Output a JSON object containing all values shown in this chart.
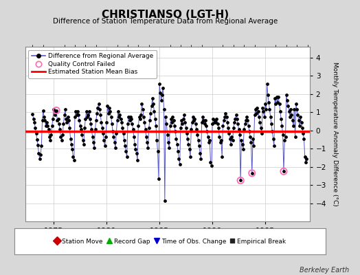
{
  "title": "CHRISTIANSO (LGT-H)",
  "subtitle": "Difference of Station Temperature Data from Regional Average",
  "ylabel": "Monthly Temperature Anomaly Difference (°C)",
  "xlim": [
    1972.3,
    1999.2
  ],
  "ylim": [
    -5.0,
    4.6
  ],
  "yticks": [
    -4,
    -3,
    -2,
    -1,
    0,
    1,
    2,
    3,
    4
  ],
  "xticks": [
    1975,
    1980,
    1985,
    1990,
    1995
  ],
  "bias_value": -0.05,
  "background_color": "#d8d8d8",
  "plot_bg_color": "#ffffff",
  "line_color": "#5555cc",
  "marker_color": "#000000",
  "bias_color": "#ff0000",
  "qc_color": "#ff69b4",
  "berkeley_earth_text": "Berkeley Earth",
  "time_series": [
    [
      1973.0,
      0.9
    ],
    [
      1973.083,
      0.65
    ],
    [
      1973.167,
      0.45
    ],
    [
      1973.25,
      0.15
    ],
    [
      1973.333,
      -0.15
    ],
    [
      1973.417,
      -0.5
    ],
    [
      1973.5,
      -0.8
    ],
    [
      1973.583,
      -1.25
    ],
    [
      1973.667,
      -1.55
    ],
    [
      1973.75,
      -1.35
    ],
    [
      1973.833,
      -0.85
    ],
    [
      1973.917,
      0.55
    ],
    [
      1974.0,
      1.1
    ],
    [
      1974.083,
      0.75
    ],
    [
      1974.167,
      0.55
    ],
    [
      1974.25,
      0.25
    ],
    [
      1974.333,
      0.45
    ],
    [
      1974.417,
      0.25
    ],
    [
      1974.5,
      0.05
    ],
    [
      1974.583,
      -0.35
    ],
    [
      1974.667,
      -0.55
    ],
    [
      1974.75,
      -0.25
    ],
    [
      1974.833,
      0.25
    ],
    [
      1974.917,
      0.65
    ],
    [
      1975.0,
      1.15
    ],
    [
      1975.083,
      0.85
    ],
    [
      1975.167,
      1.05
    ],
    [
      1975.25,
      1.1
    ],
    [
      1975.333,
      0.55
    ],
    [
      1975.417,
      0.65
    ],
    [
      1975.5,
      0.35
    ],
    [
      1975.583,
      0.05
    ],
    [
      1975.667,
      -0.35
    ],
    [
      1975.75,
      -0.55
    ],
    [
      1975.833,
      -0.25
    ],
    [
      1975.917,
      0.35
    ],
    [
      1976.0,
      0.85
    ],
    [
      1976.083,
      1.15
    ],
    [
      1976.167,
      0.65
    ],
    [
      1976.25,
      0.45
    ],
    [
      1976.333,
      0.75
    ],
    [
      1976.417,
      0.55
    ],
    [
      1976.5,
      0.15
    ],
    [
      1976.583,
      -0.45
    ],
    [
      1976.667,
      -0.75
    ],
    [
      1976.75,
      -1.05
    ],
    [
      1976.833,
      -1.45
    ],
    [
      1976.917,
      -1.65
    ],
    [
      1977.0,
      0.75
    ],
    [
      1977.083,
      1.05
    ],
    [
      1977.167,
      0.85
    ],
    [
      1977.25,
      1.05
    ],
    [
      1977.333,
      0.85
    ],
    [
      1977.417,
      0.55
    ],
    [
      1977.5,
      0.25
    ],
    [
      1977.583,
      0.05
    ],
    [
      1977.667,
      -0.25
    ],
    [
      1977.75,
      -0.55
    ],
    [
      1977.833,
      -0.75
    ],
    [
      1977.917,
      0.15
    ],
    [
      1978.0,
      0.65
    ],
    [
      1978.083,
      1.05
    ],
    [
      1978.167,
      0.75
    ],
    [
      1978.25,
      0.85
    ],
    [
      1978.333,
      1.05
    ],
    [
      1978.417,
      0.65
    ],
    [
      1978.5,
      0.35
    ],
    [
      1978.583,
      0.05
    ],
    [
      1978.667,
      -0.35
    ],
    [
      1978.75,
      -0.65
    ],
    [
      1978.833,
      -0.95
    ],
    [
      1978.917,
      0.05
    ],
    [
      1979.0,
      0.55
    ],
    [
      1979.083,
      0.95
    ],
    [
      1979.167,
      1.25
    ],
    [
      1979.25,
      1.45
    ],
    [
      1979.333,
      1.15
    ],
    [
      1979.417,
      0.85
    ],
    [
      1979.5,
      0.45
    ],
    [
      1979.583,
      0.15
    ],
    [
      1979.667,
      -0.15
    ],
    [
      1979.75,
      -0.55
    ],
    [
      1979.833,
      -0.85
    ],
    [
      1979.917,
      -0.35
    ],
    [
      1980.0,
      0.45
    ],
    [
      1980.083,
      1.35
    ],
    [
      1980.167,
      0.95
    ],
    [
      1980.25,
      1.25
    ],
    [
      1980.333,
      1.05
    ],
    [
      1980.417,
      0.75
    ],
    [
      1980.5,
      0.35
    ],
    [
      1980.583,
      -0.05
    ],
    [
      1980.667,
      -0.35
    ],
    [
      1980.75,
      -0.65
    ],
    [
      1980.833,
      -0.95
    ],
    [
      1980.917,
      -0.15
    ],
    [
      1981.0,
      0.55
    ],
    [
      1981.083,
      1.05
    ],
    [
      1981.167,
      0.75
    ],
    [
      1981.25,
      0.85
    ],
    [
      1981.333,
      0.65
    ],
    [
      1981.417,
      0.45
    ],
    [
      1981.5,
      0.15
    ],
    [
      1981.583,
      -0.15
    ],
    [
      1981.667,
      -0.55
    ],
    [
      1981.75,
      -0.85
    ],
    [
      1981.833,
      -1.15
    ],
    [
      1981.917,
      -1.45
    ],
    [
      1982.0,
      0.35
    ],
    [
      1982.083,
      0.75
    ],
    [
      1982.167,
      0.55
    ],
    [
      1982.25,
      0.75
    ],
    [
      1982.333,
      0.65
    ],
    [
      1982.417,
      0.35
    ],
    [
      1982.5,
      0.05
    ],
    [
      1982.583,
      -0.35
    ],
    [
      1982.667,
      -0.75
    ],
    [
      1982.75,
      -1.05
    ],
    [
      1982.833,
      -1.25
    ],
    [
      1982.917,
      -1.65
    ],
    [
      1983.0,
      0.25
    ],
    [
      1983.083,
      0.75
    ],
    [
      1983.167,
      0.65
    ],
    [
      1983.25,
      0.85
    ],
    [
      1983.333,
      1.45
    ],
    [
      1983.417,
      1.15
    ],
    [
      1983.5,
      0.75
    ],
    [
      1983.583,
      0.45
    ],
    [
      1983.667,
      0.05
    ],
    [
      1983.75,
      -0.35
    ],
    [
      1983.833,
      -0.65
    ],
    [
      1983.917,
      -0.95
    ],
    [
      1984.0,
      0.15
    ],
    [
      1984.083,
      0.55
    ],
    [
      1984.167,
      0.95
    ],
    [
      1984.25,
      1.35
    ],
    [
      1984.333,
      1.75
    ],
    [
      1984.417,
      1.45
    ],
    [
      1984.5,
      1.05
    ],
    [
      1984.583,
      0.65
    ],
    [
      1984.667,
      0.25
    ],
    [
      1984.75,
      -0.55
    ],
    [
      1984.833,
      -1.15
    ],
    [
      1984.917,
      -2.65
    ],
    [
      1985.0,
      2.55
    ],
    [
      1985.083,
      2.05
    ],
    [
      1985.167,
      1.65
    ],
    [
      1985.25,
      1.95
    ],
    [
      1985.333,
      2.35
    ],
    [
      1985.417,
      1.15
    ],
    [
      1985.5,
      -3.85
    ],
    [
      1985.583,
      0.75
    ],
    [
      1985.667,
      0.35
    ],
    [
      1985.75,
      -0.25
    ],
    [
      1985.833,
      -0.65
    ],
    [
      1985.917,
      -0.95
    ],
    [
      1986.0,
      0.25
    ],
    [
      1986.083,
      0.65
    ],
    [
      1986.167,
      0.45
    ],
    [
      1986.25,
      0.75
    ],
    [
      1986.333,
      0.55
    ],
    [
      1986.417,
      0.25
    ],
    [
      1986.5,
      -0.05
    ],
    [
      1986.583,
      -0.45
    ],
    [
      1986.667,
      -0.75
    ],
    [
      1986.75,
      -1.15
    ],
    [
      1986.833,
      -1.55
    ],
    [
      1986.917,
      -1.85
    ],
    [
      1987.0,
      0.15
    ],
    [
      1987.083,
      0.55
    ],
    [
      1987.167,
      0.35
    ],
    [
      1987.25,
      0.65
    ],
    [
      1987.333,
      0.85
    ],
    [
      1987.417,
      0.45
    ],
    [
      1987.5,
      0.15
    ],
    [
      1987.583,
      -0.15
    ],
    [
      1987.667,
      -0.45
    ],
    [
      1987.75,
      -0.75
    ],
    [
      1987.833,
      -1.05
    ],
    [
      1987.917,
      -1.45
    ],
    [
      1988.0,
      0.05
    ],
    [
      1988.083,
      0.45
    ],
    [
      1988.167,
      0.75
    ],
    [
      1988.25,
      0.55
    ],
    [
      1988.333,
      0.65
    ],
    [
      1988.417,
      0.35
    ],
    [
      1988.5,
      0.05
    ],
    [
      1988.583,
      -0.25
    ],
    [
      1988.667,
      -0.55
    ],
    [
      1988.75,
      -0.85
    ],
    [
      1988.833,
      -1.25
    ],
    [
      1988.917,
      -1.55
    ],
    [
      1989.0,
      0.45
    ],
    [
      1989.083,
      0.75
    ],
    [
      1989.167,
      0.55
    ],
    [
      1989.25,
      0.35
    ],
    [
      1989.333,
      0.55
    ],
    [
      1989.417,
      0.25
    ],
    [
      1989.5,
      -0.05
    ],
    [
      1989.583,
      -0.35
    ],
    [
      1989.667,
      -0.65
    ],
    [
      1989.75,
      -0.55
    ],
    [
      1989.833,
      -1.75
    ],
    [
      1989.917,
      -1.95
    ],
    [
      1990.0,
      0.35
    ],
    [
      1990.083,
      0.65
    ],
    [
      1990.167,
      0.45
    ],
    [
      1990.25,
      0.55
    ],
    [
      1990.333,
      0.45
    ],
    [
      1990.417,
      0.65
    ],
    [
      1990.5,
      0.35
    ],
    [
      1990.583,
      0.15
    ],
    [
      1990.667,
      -0.35
    ],
    [
      1990.75,
      -0.65
    ],
    [
      1990.833,
      -0.55
    ],
    [
      1990.917,
      -1.45
    ],
    [
      1991.0,
      0.25
    ],
    [
      1991.083,
      0.55
    ],
    [
      1991.167,
      0.75
    ],
    [
      1991.25,
      0.95
    ],
    [
      1991.333,
      0.75
    ],
    [
      1991.417,
      0.45
    ],
    [
      1991.5,
      0.15
    ],
    [
      1991.583,
      -0.15
    ],
    [
      1991.667,
      -0.45
    ],
    [
      1991.75,
      -0.75
    ],
    [
      1991.833,
      -0.35
    ],
    [
      1991.917,
      -0.55
    ],
    [
      1992.0,
      0.15
    ],
    [
      1992.083,
      0.45
    ],
    [
      1992.167,
      0.65
    ],
    [
      1992.25,
      0.85
    ],
    [
      1992.333,
      0.65
    ],
    [
      1992.417,
      0.35
    ],
    [
      1992.5,
      0.05
    ],
    [
      1992.583,
      -0.25
    ],
    [
      1992.667,
      -2.75
    ],
    [
      1992.75,
      -0.55
    ],
    [
      1992.833,
      -0.75
    ],
    [
      1992.917,
      -1.05
    ],
    [
      1993.0,
      0.05
    ],
    [
      1993.083,
      0.35
    ],
    [
      1993.167,
      0.55
    ],
    [
      1993.25,
      0.75
    ],
    [
      1993.333,
      0.55
    ],
    [
      1993.417,
      0.25
    ],
    [
      1993.5,
      -0.05
    ],
    [
      1993.583,
      -0.35
    ],
    [
      1993.667,
      -0.65
    ],
    [
      1993.75,
      -2.35
    ],
    [
      1993.833,
      -0.45
    ],
    [
      1993.917,
      -0.85
    ],
    [
      1994.0,
      0.85
    ],
    [
      1994.083,
      1.15
    ],
    [
      1994.167,
      0.95
    ],
    [
      1994.25,
      1.25
    ],
    [
      1994.333,
      1.05
    ],
    [
      1994.417,
      0.75
    ],
    [
      1994.5,
      0.45
    ],
    [
      1994.583,
      0.15
    ],
    [
      1994.667,
      -0.15
    ],
    [
      1994.75,
      1.25
    ],
    [
      1994.833,
      1.05
    ],
    [
      1994.917,
      0.75
    ],
    [
      1995.0,
      1.45
    ],
    [
      1995.083,
      1.15
    ],
    [
      1995.167,
      2.55
    ],
    [
      1995.25,
      1.95
    ],
    [
      1995.333,
      1.55
    ],
    [
      1995.417,
      1.15
    ],
    [
      1995.5,
      0.75
    ],
    [
      1995.583,
      0.35
    ],
    [
      1995.667,
      -0.05
    ],
    [
      1995.75,
      -0.45
    ],
    [
      1995.833,
      -0.85
    ],
    [
      1995.917,
      1.75
    ],
    [
      1996.0,
      1.45
    ],
    [
      1996.083,
      1.85
    ],
    [
      1996.167,
      1.55
    ],
    [
      1996.25,
      1.85
    ],
    [
      1996.333,
      1.45
    ],
    [
      1996.417,
      1.05
    ],
    [
      1996.5,
      0.65
    ],
    [
      1996.583,
      0.25
    ],
    [
      1996.667,
      -0.25
    ],
    [
      1996.75,
      -2.25
    ],
    [
      1996.833,
      -0.55
    ],
    [
      1996.917,
      -0.35
    ],
    [
      1997.0,
      1.95
    ],
    [
      1997.083,
      1.65
    ],
    [
      1997.167,
      1.35
    ],
    [
      1997.25,
      1.05
    ],
    [
      1997.333,
      0.75
    ],
    [
      1997.417,
      1.15
    ],
    [
      1997.5,
      0.85
    ],
    [
      1997.583,
      0.55
    ],
    [
      1997.667,
      0.25
    ],
    [
      1997.75,
      1.15
    ],
    [
      1997.833,
      -0.35
    ],
    [
      1997.917,
      1.45
    ],
    [
      1998.0,
      1.15
    ],
    [
      1998.083,
      0.85
    ],
    [
      1998.167,
      0.55
    ],
    [
      1998.25,
      0.25
    ],
    [
      1998.333,
      0.75
    ],
    [
      1998.417,
      0.45
    ],
    [
      1998.5,
      0.15
    ],
    [
      1998.583,
      -0.15
    ],
    [
      1998.667,
      -0.45
    ],
    [
      1998.75,
      -1.45
    ],
    [
      1998.833,
      -1.75
    ],
    [
      1998.917,
      -1.55
    ]
  ],
  "qc_failed_points": [
    [
      1975.25,
      1.1
    ],
    [
      1992.667,
      -2.75
    ],
    [
      1993.75,
      -2.35
    ],
    [
      1996.75,
      -2.25
    ]
  ]
}
